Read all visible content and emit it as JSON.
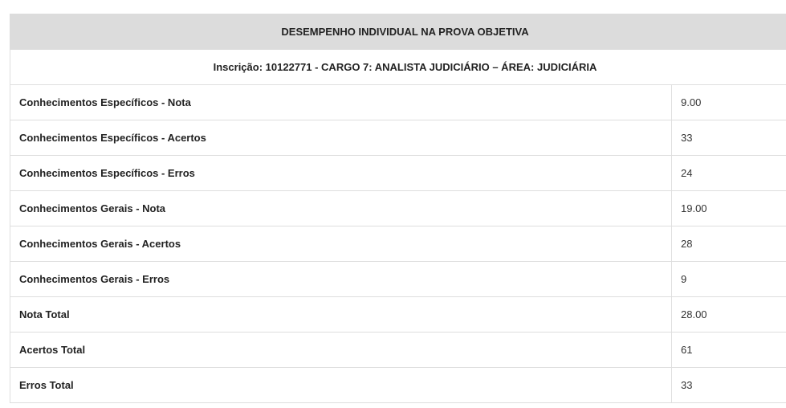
{
  "title": "DESEMPENHO INDIVIDUAL NA PROVA OBJETIVA",
  "subtitle": "Inscrição: 10122771 - CARGO 7: ANALISTA JUDICIÁRIO – ÁREA: JUDICIÁRIA",
  "rows": [
    {
      "label": "Conhecimentos Específicos - Nota",
      "value": "9.00"
    },
    {
      "label": "Conhecimentos Específicos - Acertos",
      "value": "33"
    },
    {
      "label": "Conhecimentos Específicos - Erros",
      "value": "24"
    },
    {
      "label": "Conhecimentos Gerais - Nota",
      "value": "19.00"
    },
    {
      "label": "Conhecimentos Gerais - Acertos",
      "value": "28"
    },
    {
      "label": "Conhecimentos Gerais - Erros",
      "value": "9"
    },
    {
      "label": "Nota Total",
      "value": "28.00"
    },
    {
      "label": "Acertos Total",
      "value": "61"
    },
    {
      "label": "Erros Total",
      "value": "33"
    }
  ]
}
